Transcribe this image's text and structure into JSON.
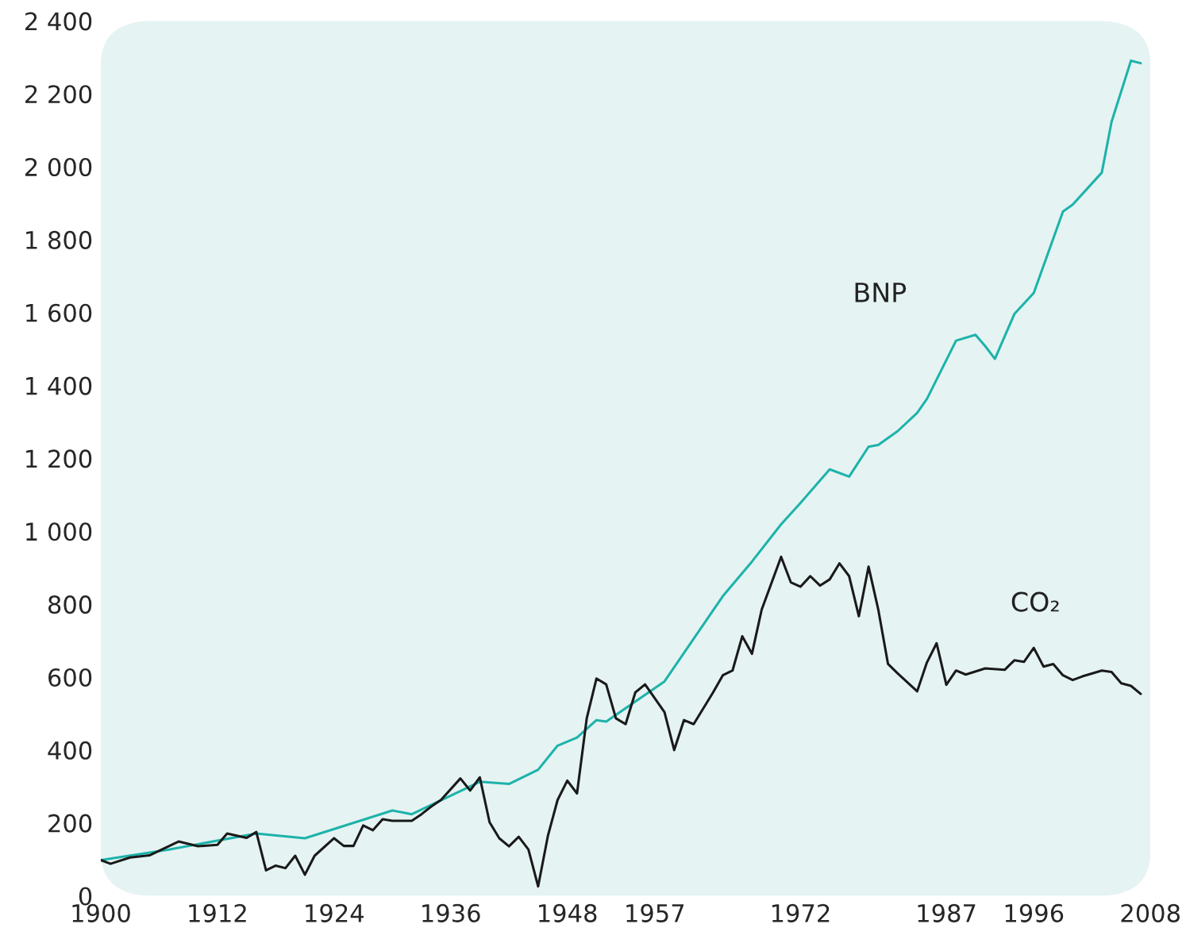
{
  "chart_data": {
    "type": "line",
    "ylim": [
      0,
      2400
    ],
    "yticks": [
      0,
      200,
      400,
      600,
      800,
      {
        "value": 1000,
        "label": "1 000"
      },
      {
        "value": 1200,
        "label": "1 200"
      },
      {
        "value": 1400,
        "label": "1 400"
      },
      {
        "value": 1600,
        "label": "1 600"
      },
      {
        "value": 1800,
        "label": "1 800"
      },
      {
        "value": 2000,
        "label": "2 000"
      },
      {
        "value": 2200,
        "label": "2 200"
      },
      {
        "value": 2400,
        "label": "2 400"
      }
    ],
    "xlim": [
      1900,
      2008
    ],
    "xticks": [
      1900,
      1912,
      1924,
      1936,
      1948,
      1957,
      1972,
      1987,
      1996,
      2008
    ],
    "grid": false,
    "legend": false,
    "line_style": "solid",
    "marker": "none",
    "series": [
      {
        "name": "BNP",
        "color": "#1db3aa",
        "x": [
          1900,
          1907,
          1916,
          1921,
          1930,
          1932,
          1939,
          1942,
          1945,
          1947,
          1949,
          1951,
          1952,
          1958,
          1964,
          1967,
          1970,
          1972,
          1975,
          1977,
          1979,
          1980,
          1982,
          1984,
          1985,
          1988,
          1990,
          1991,
          1992,
          1994,
          1996,
          1999,
          2000,
          2003,
          2004,
          2006,
          2007
        ],
        "values": [
          98,
          127,
          171,
          158,
          234,
          224,
          313,
          307,
          346,
          412,
          434,
          482,
          478,
          588,
          822,
          917,
          1019,
          1078,
          1170,
          1150,
          1232,
          1237,
          1275,
          1325,
          1363,
          1523,
          1539,
          1508,
          1473,
          1596,
          1654,
          1877,
          1896,
          1984,
          2123,
          2291,
          2284
        ]
      },
      {
        "name": "CO₂",
        "color": "#1a1a1a",
        "x": [
          1900,
          1901,
          1903,
          1905,
          1908,
          1910,
          1912,
          1913,
          1915,
          1916,
          1917,
          1918,
          1919,
          1920,
          1921,
          1922,
          1924,
          1925,
          1926,
          1927,
          1928,
          1929,
          1930,
          1932,
          1933,
          1934,
          1935,
          1937,
          1938,
          1939,
          1940,
          1941,
          1942,
          1943,
          1944,
          1945,
          1946,
          1947,
          1948,
          1949,
          1950,
          1951,
          1952,
          1953,
          1954,
          1955,
          1956,
          1958,
          1959,
          1960,
          1961,
          1963,
          1964,
          1965,
          1966,
          1967,
          1968,
          1970,
          1971,
          1972,
          1973,
          1974,
          1975,
          1976,
          1977,
          1978,
          1979,
          1980,
          1981,
          1982,
          1984,
          1985,
          1986,
          1987,
          1988,
          1989,
          1991,
          1993,
          1994,
          1995,
          1996,
          1997,
          1998,
          1999,
          2000,
          2001,
          2003,
          2004,
          2005,
          2006,
          2007
        ],
        "values": [
          98,
          88,
          105,
          111,
          149,
          136,
          140,
          171,
          159,
          175,
          70,
          83,
          76,
          110,
          58,
          110,
          158,
          137,
          137,
          193,
          180,
          210,
          206,
          206,
          224,
          245,
          263,
          322,
          289,
          325,
          202,
          158,
          136,
          162,
          127,
          26,
          164,
          263,
          316,
          281,
          487,
          596,
          580,
          487,
          471,
          558,
          580,
          504,
          400,
          482,
          471,
          558,
          605,
          618,
          712,
          664,
          785,
          930,
          860,
          848,
          877,
          851,
          868,
          912,
          877,
          767,
          903,
          785,
          636,
          610,
          561,
          640,
          693,
          579,
          618,
          607,
          624,
          620,
          646,
          642,
          680,
          629,
          636,
          605,
          592,
          602,
          618,
          614,
          583,
          576,
          554
        ]
      }
    ]
  }
}
